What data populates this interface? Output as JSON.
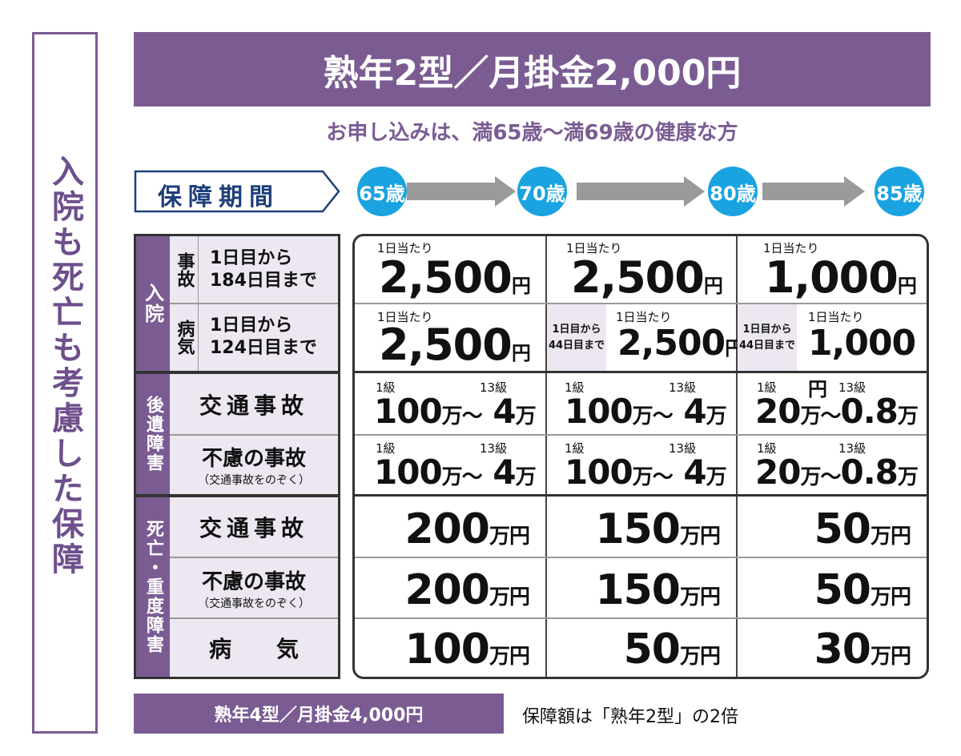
{
  "sidebar": {
    "title": "入院も死亡も考慮した保障"
  },
  "banner": {
    "title": "熟年2型／月掛金2,000円"
  },
  "subtitle": "お申し込みは、満65歳～満69歳の健康な方",
  "period": {
    "label": "保障期間"
  },
  "ages": [
    "65歳",
    "70歳",
    "80歳",
    "85歳"
  ],
  "left_table": {
    "nyuin": {
      "category": "入院",
      "jiko": {
        "sub": "事故",
        "line1": "1日目から",
        "line2": "184日目まで"
      },
      "byoki": {
        "sub": "病気",
        "line1": "1日目から",
        "line2": "124日目まで"
      }
    },
    "kouisho": {
      "category": "後遺障害",
      "row1": "交通事故",
      "row2": "不慮の事故",
      "row2_note": "（交通事故をのぞく）"
    },
    "shibo": {
      "category": "死亡・重度障害",
      "row1": "交通事故",
      "row2": "不慮の事故",
      "row2_note": "（交通事故をのぞく）",
      "row3": "病　　気"
    }
  },
  "grid": {
    "per_day": "1日当たり",
    "grade1": "1級",
    "grade13": "13級",
    "limit_note_1": "1日目から",
    "limit_note_2": "44日目まで",
    "yen": "円",
    "man": "万",
    "man_en": "万円",
    "tilde": "～",
    "nyuin_jiko": [
      "2,500",
      "2,500",
      "1,000"
    ],
    "nyuin_byoki": [
      "2,500",
      "2,500",
      "1,000"
    ],
    "kouisho_koutsu": [
      [
        "100",
        "4"
      ],
      [
        "100",
        "4"
      ],
      [
        "20",
        "0.8"
      ]
    ],
    "kouisho_furyo": [
      [
        "100",
        "4"
      ],
      [
        "100",
        "4"
      ],
      [
        "20",
        "0.8"
      ]
    ],
    "shibo_koutsu": [
      "200",
      "150",
      "50"
    ],
    "shibo_furyo": [
      "200",
      "150",
      "50"
    ],
    "shibo_byoki": [
      "100",
      "50",
      "30"
    ]
  },
  "footer": {
    "plan": "熟年4型／月掛金4,000円",
    "note": "保障額は「熟年2型」の2倍"
  },
  "colors": {
    "purple": "#7a5c93",
    "blue": "#1aa3e0",
    "navy": "#1e3f78"
  }
}
